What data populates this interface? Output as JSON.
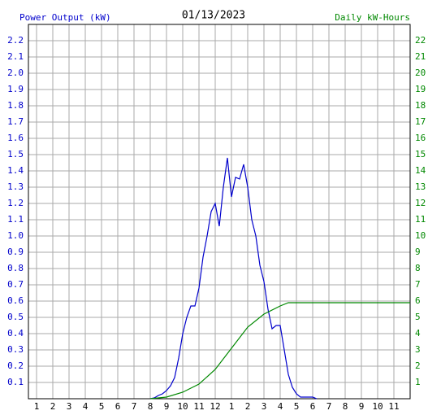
{
  "chart_data": {
    "type": "line",
    "title": "01/13/2023",
    "y_label": "Power Output (kW)",
    "y2_label": "Daily kW-Hours",
    "xlim": [
      0.5,
      24
    ],
    "xticks": [
      1,
      2,
      3,
      4,
      5,
      6,
      7,
      8,
      9,
      10,
      11,
      12,
      {
        "value": 13,
        "label": "1"
      },
      {
        "value": 14,
        "label": "2"
      },
      {
        "value": 15,
        "label": "3"
      },
      {
        "value": 16,
        "label": "4"
      },
      {
        "value": 17,
        "label": "5"
      },
      {
        "value": 18,
        "label": "6"
      },
      {
        "value": 19,
        "label": "7"
      },
      {
        "value": 20,
        "label": "8"
      },
      {
        "value": 21,
        "label": "9"
      },
      {
        "value": 22,
        "label": "10"
      },
      {
        "value": 23,
        "label": "11"
      }
    ],
    "ylim": [
      0,
      2.3
    ],
    "yticks": [
      0.1,
      0.2,
      0.3,
      0.4,
      0.5,
      0.6,
      0.7,
      0.8,
      0.9,
      {
        "value": 1,
        "label": "1.0"
      },
      1.1,
      1.2,
      1.3,
      1.4,
      1.5,
      1.6,
      1.7,
      1.8,
      1.9,
      {
        "value": 2,
        "label": "2.0"
      },
      2.1,
      2.2
    ],
    "y2lim": [
      0,
      23
    ],
    "y2ticks": [
      1,
      2,
      3,
      4,
      5,
      6,
      7,
      8,
      9,
      10,
      11,
      12,
      13,
      14,
      15,
      16,
      17,
      18,
      19,
      20,
      21,
      22
    ],
    "grid": true,
    "series": [
      {
        "name": "Power Output (kW)",
        "color": "#0000cc",
        "x": [
          8,
          8.25,
          8.5,
          8.75,
          9,
          9.25,
          9.5,
          9.75,
          10,
          10.25,
          10.5,
          10.75,
          11,
          11.25,
          11.5,
          11.75,
          12,
          12.25,
          12.5,
          12.75,
          13,
          13.25,
          13.5,
          13.75,
          14,
          14.25,
          14.5,
          14.75,
          15,
          15.25,
          15.5,
          15.75,
          16,
          16.25,
          16.5,
          16.75,
          17,
          17.25,
          17.5,
          18,
          18.25
        ],
        "values": [
          0,
          0.005,
          0.02,
          0.03,
          0.05,
          0.08,
          0.13,
          0.25,
          0.4,
          0.5,
          0.57,
          0.57,
          0.68,
          0.87,
          1.0,
          1.15,
          1.2,
          1.06,
          1.3,
          1.48,
          1.24,
          1.36,
          1.35,
          1.44,
          1.3,
          1.1,
          1.0,
          0.82,
          0.72,
          0.55,
          0.43,
          0.45,
          0.45,
          0.3,
          0.15,
          0.07,
          0.03,
          0.01,
          0.01,
          0.01,
          0
        ]
      },
      {
        "name": "Daily kW-Hours",
        "color": "#008800",
        "axis": "y2",
        "x": [
          8,
          9,
          10,
          11,
          12,
          13,
          14,
          15,
          16,
          16.5,
          24
        ],
        "values": [
          0,
          0.1,
          0.4,
          0.9,
          1.8,
          3.1,
          4.4,
          5.2,
          5.7,
          5.9,
          5.9
        ]
      }
    ]
  }
}
